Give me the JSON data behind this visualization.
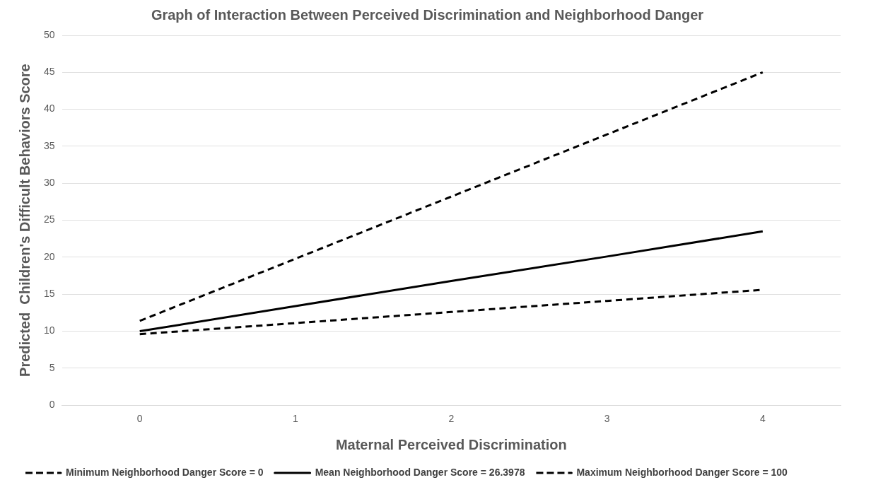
{
  "chart_data": {
    "type": "line",
    "title": "Graph of Interaction Between Perceived Discrimination and Neighborhood Danger",
    "xlabel": "Maternal Perceived Discrimination",
    "ylabel": "Predicted  Children's Difficult Behaviors Score",
    "categories": [
      "0",
      "1",
      "2",
      "3",
      "4"
    ],
    "series": [
      {
        "name": "Minimum Neighborhood Danger Score = 0",
        "color": "#000000",
        "line_style": "dashed",
        "values": [
          9.6,
          11.1,
          12.6,
          14.1,
          15.6
        ]
      },
      {
        "name": "Mean Neighborhood Danger Score = 26.3978",
        "color": "#000000",
        "line_style": "solid",
        "values": [
          10.0,
          13.4,
          16.8,
          20.1,
          23.5
        ]
      },
      {
        "name": "Maximum Neighborhood Danger Score = 100",
        "color": "#000000",
        "line_style": "dashed",
        "values": [
          11.4,
          19.8,
          28.2,
          36.6,
          45.0
        ]
      }
    ],
    "ylim": [
      0,
      50
    ],
    "yticks": [
      0,
      5,
      10,
      15,
      20,
      25,
      30,
      35,
      40,
      45,
      50
    ],
    "grid": "y",
    "legend": "bottom",
    "marker": "none"
  }
}
